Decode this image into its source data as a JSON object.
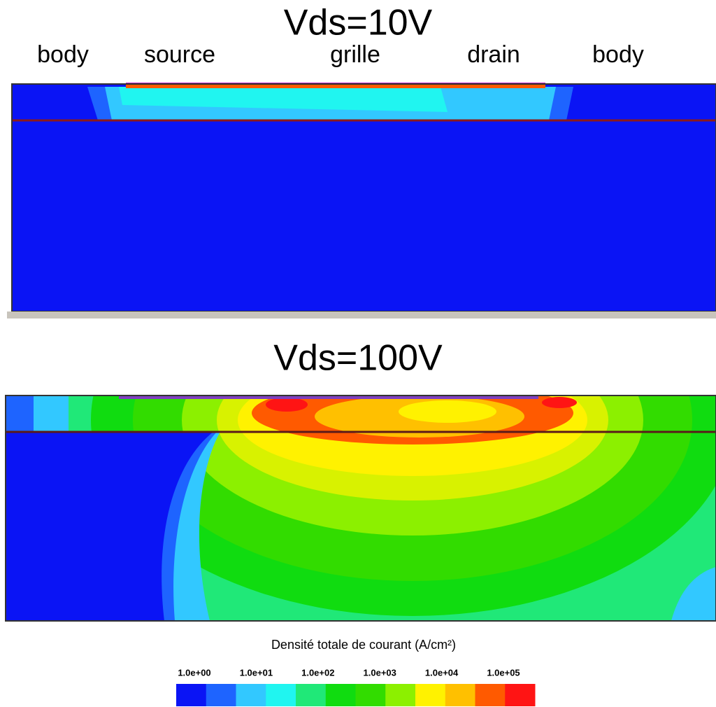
{
  "titles": [
    "Vds=10V",
    "Vds=100V"
  ],
  "labels": [
    "body",
    "source",
    "grille",
    "drain",
    "body"
  ],
  "colorbar": {
    "title": "Densité totale de courant (A/cm²)",
    "ticks": [
      "1.0e+00",
      "1.0e+01",
      "1.0e+02",
      "1.0e+03",
      "1.0e+04",
      "1.0e+05"
    ],
    "colors": [
      "#0a14f5",
      "#1e64ff",
      "#32c8ff",
      "#20f5f0",
      "#20e878",
      "#10dc10",
      "#32dc00",
      "#8cf000",
      "#fff200",
      "#ffc000",
      "#ff5a00",
      "#ff1414"
    ]
  }
}
